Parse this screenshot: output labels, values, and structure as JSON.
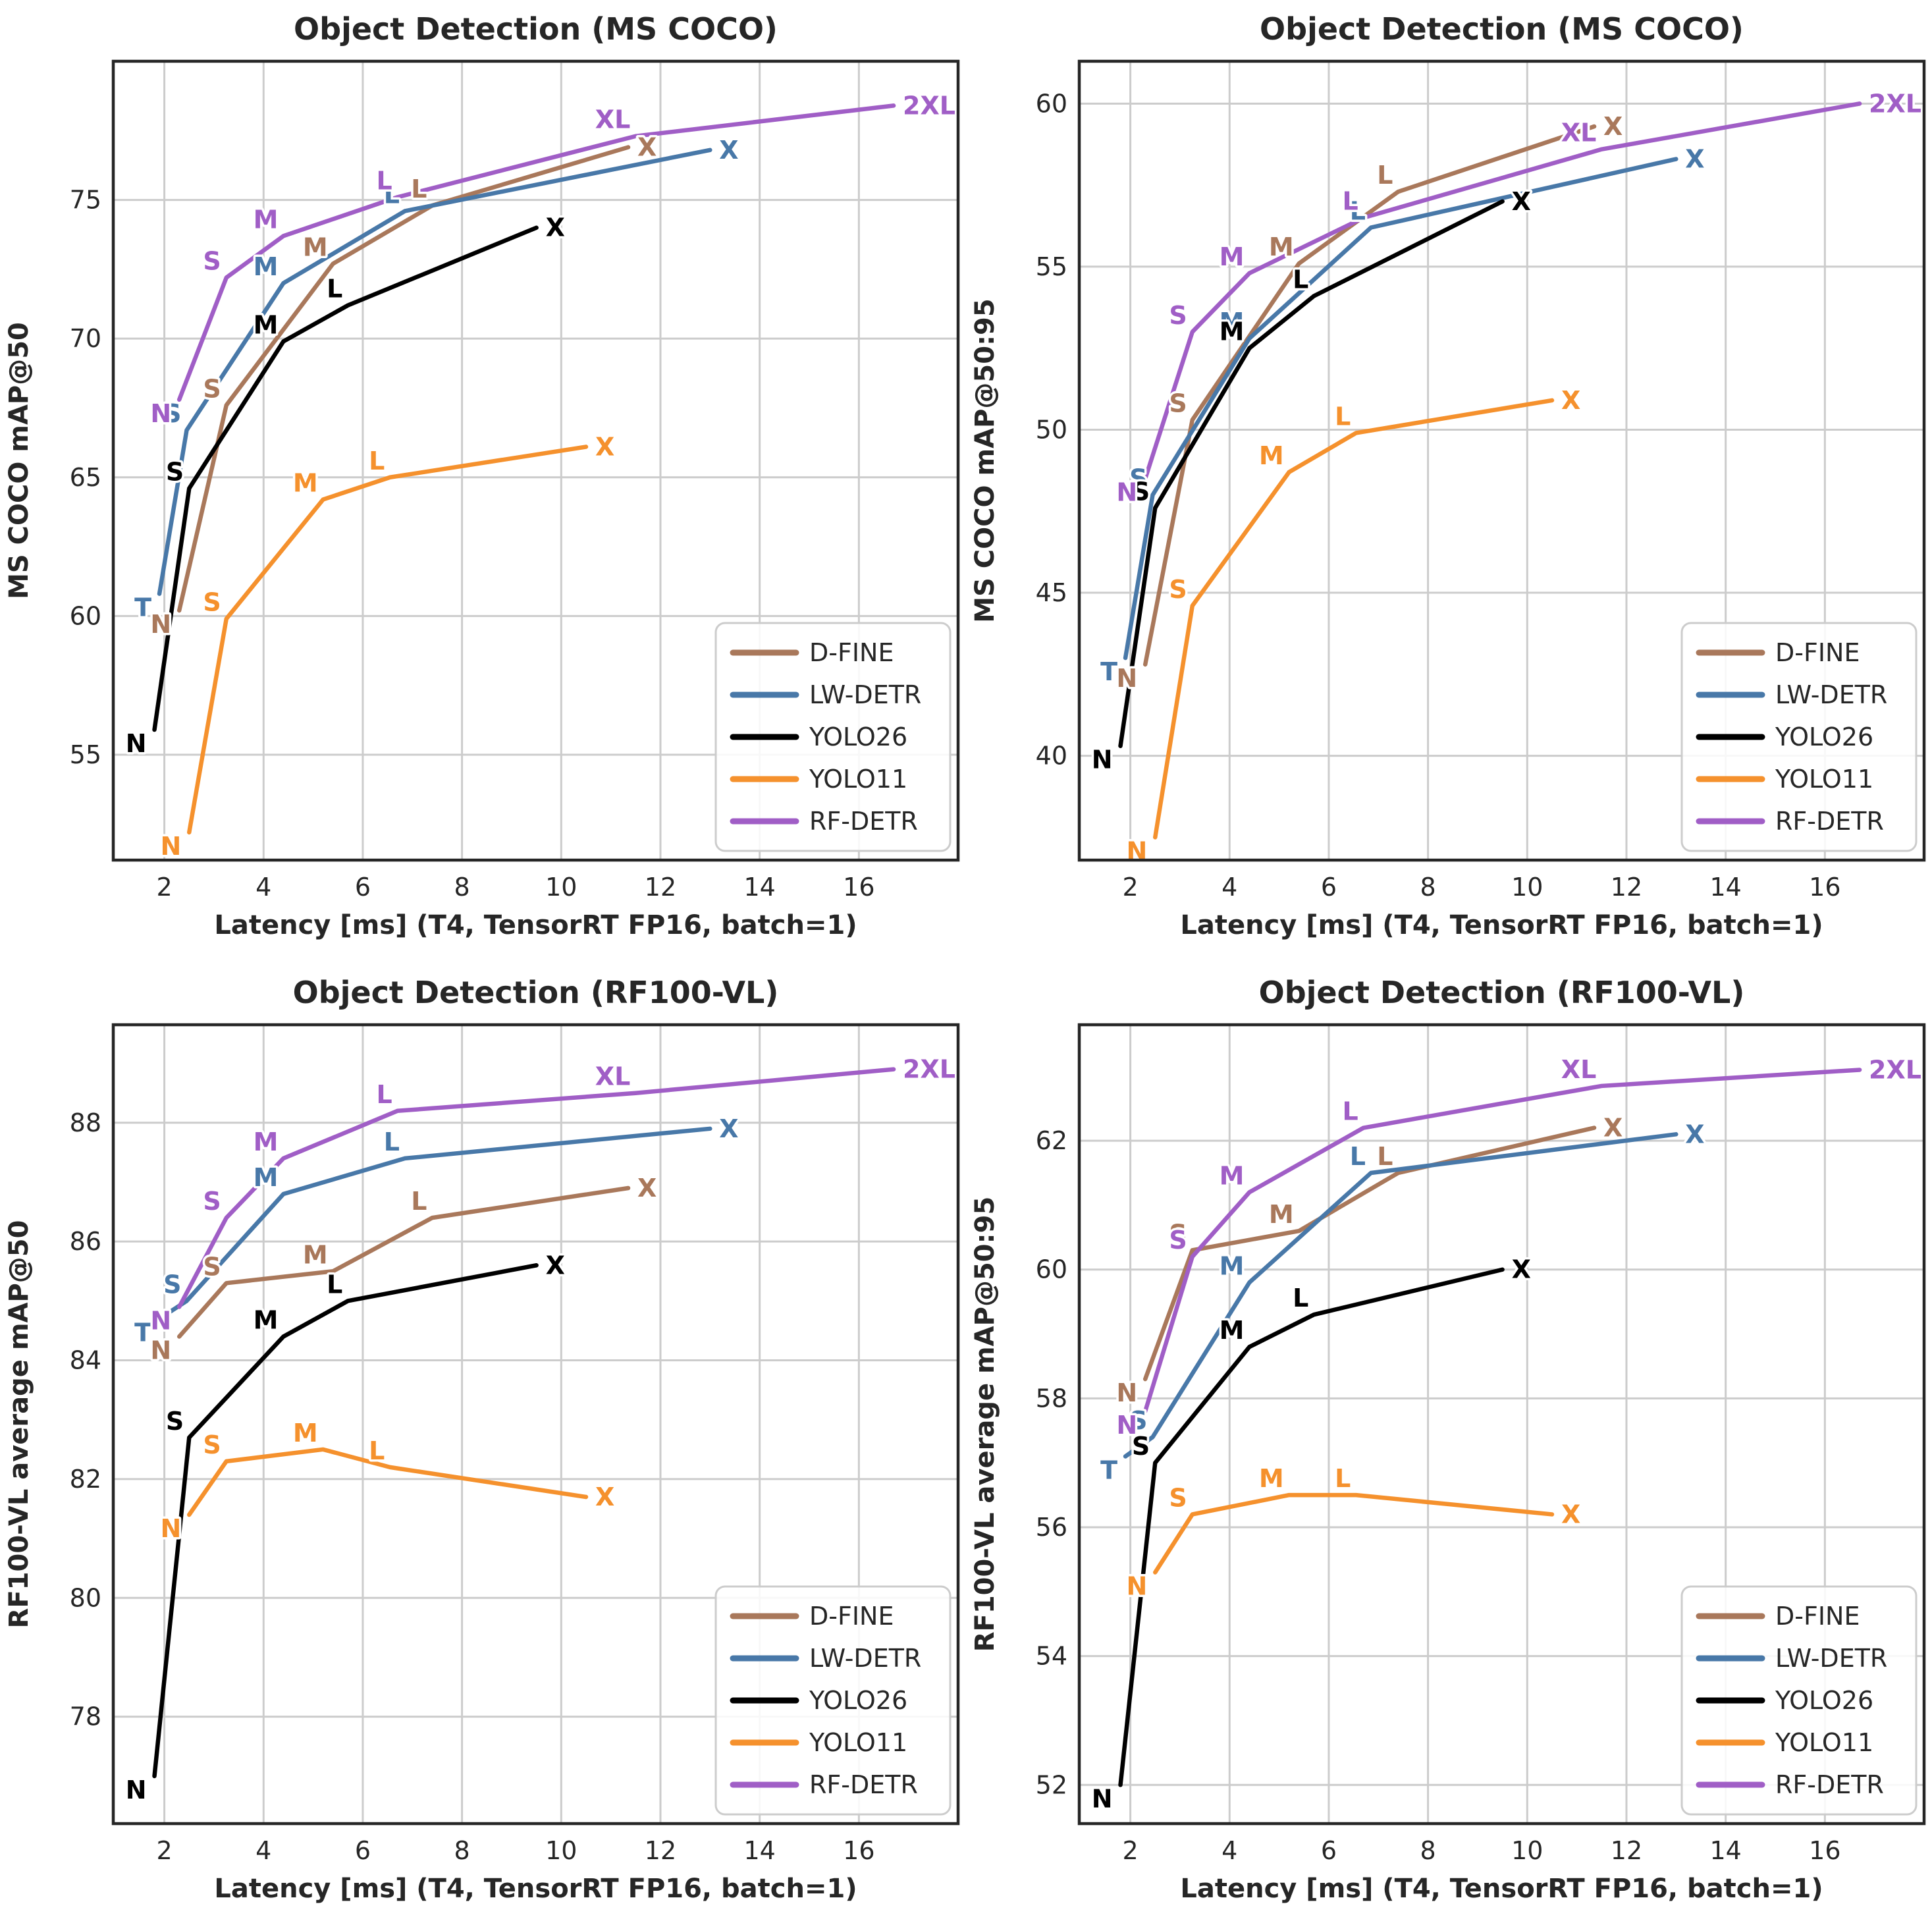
{
  "figure": {
    "background": "#ffffff",
    "text_color": "#262626",
    "grid_color": "#cccccc",
    "spine_color": "#262626"
  },
  "chart_data": [
    {
      "type": "line",
      "title": "Object Detection (MS COCO)",
      "xlabel": "Latency [ms] (T4, TensorRT FP16, batch=1)",
      "ylabel": "MS COCO mAP@50",
      "xlim": [
        0.97,
        18.0
      ],
      "ylim": [
        51.2,
        80.0
      ],
      "xticks": [
        2,
        4,
        6,
        8,
        10,
        12,
        14,
        16
      ],
      "yticks": [
        55,
        60,
        65,
        70,
        75
      ],
      "grid": true,
      "legend_position": "lower right",
      "series": [
        {
          "name": "D-FINE",
          "color": "#A9785B",
          "points": [
            {
              "label": "N",
              "x": 2.3,
              "y": 60.2
            },
            {
              "label": "S",
              "x": 3.25,
              "y": 67.6
            },
            {
              "label": "M",
              "x": 5.4,
              "y": 72.7
            },
            {
              "label": "L",
              "x": 7.4,
              "y": 74.8
            },
            {
              "label": "X",
              "x": 11.35,
              "y": 76.9
            }
          ]
        },
        {
          "name": "LW-DETR",
          "color": "#4878A8",
          "points": [
            {
              "label": "T",
              "x": 1.9,
              "y": 60.8
            },
            {
              "label": "S",
              "x": 2.45,
              "y": 66.7
            },
            {
              "label": "M",
              "x": 4.4,
              "y": 72.0
            },
            {
              "label": "L",
              "x": 6.85,
              "y": 74.6
            },
            {
              "label": "X",
              "x": 13.0,
              "y": 76.8
            }
          ]
        },
        {
          "name": "YOLO26",
          "color": "#000000",
          "points": [
            {
              "label": "N",
              "x": 1.8,
              "y": 55.9
            },
            {
              "label": "S",
              "x": 2.5,
              "y": 64.6
            },
            {
              "label": "M",
              "x": 4.4,
              "y": 69.9
            },
            {
              "label": "L",
              "x": 5.7,
              "y": 71.2
            },
            {
              "label": "X",
              "x": 9.5,
              "y": 74.0
            }
          ]
        },
        {
          "name": "YOLO11",
          "color": "#F5912D",
          "points": [
            {
              "label": "N",
              "x": 2.5,
              "y": 52.2
            },
            {
              "label": "S",
              "x": 3.25,
              "y": 59.9
            },
            {
              "label": "M",
              "x": 5.2,
              "y": 64.2
            },
            {
              "label": "L",
              "x": 6.55,
              "y": 65.0
            },
            {
              "label": "X",
              "x": 10.5,
              "y": 66.1
            }
          ]
        },
        {
          "name": "RF-DETR",
          "color": "#A05EC6",
          "points": [
            {
              "label": "N",
              "x": 2.3,
              "y": 67.8
            },
            {
              "label": "S",
              "x": 3.25,
              "y": 72.2
            },
            {
              "label": "M",
              "x": 4.4,
              "y": 73.7
            },
            {
              "label": "L",
              "x": 6.7,
              "y": 75.1
            },
            {
              "label": "XL",
              "x": 11.5,
              "y": 77.3
            },
            {
              "label": "2XL",
              "x": 16.7,
              "y": 78.4
            }
          ]
        }
      ]
    },
    {
      "type": "line",
      "title": "Object Detection (MS COCO)",
      "xlabel": "Latency [ms] (T4, TensorRT FP16, batch=1)",
      "ylabel": "MS COCO mAP@50:95",
      "xlim": [
        0.97,
        18.0
      ],
      "ylim": [
        36.8,
        61.3
      ],
      "xticks": [
        2,
        4,
        6,
        8,
        10,
        12,
        14,
        16
      ],
      "yticks": [
        40,
        45,
        50,
        55,
        60
      ],
      "grid": true,
      "legend_position": "lower right",
      "series": [
        {
          "name": "D-FINE",
          "color": "#A9785B",
          "points": [
            {
              "label": "N",
              "x": 2.3,
              "y": 42.8
            },
            {
              "label": "S",
              "x": 3.25,
              "y": 50.3
            },
            {
              "label": "M",
              "x": 5.4,
              "y": 55.1
            },
            {
              "label": "L",
              "x": 7.4,
              "y": 57.3
            },
            {
              "label": "X",
              "x": 11.35,
              "y": 59.3
            }
          ]
        },
        {
          "name": "LW-DETR",
          "color": "#4878A8",
          "points": [
            {
              "label": "T",
              "x": 1.9,
              "y": 43.0
            },
            {
              "label": "S",
              "x": 2.45,
              "y": 48.0
            },
            {
              "label": "M",
              "x": 4.4,
              "y": 52.8
            },
            {
              "label": "L",
              "x": 6.85,
              "y": 56.2
            },
            {
              "label": "X",
              "x": 13.0,
              "y": 58.3
            }
          ]
        },
        {
          "name": "YOLO26",
          "color": "#000000",
          "points": [
            {
              "label": "N",
              "x": 1.8,
              "y": 40.3
            },
            {
              "label": "S",
              "x": 2.5,
              "y": 47.6
            },
            {
              "label": "M",
              "x": 4.4,
              "y": 52.5
            },
            {
              "label": "L",
              "x": 5.7,
              "y": 54.1
            },
            {
              "label": "X",
              "x": 9.5,
              "y": 57.0
            }
          ]
        },
        {
          "name": "YOLO11",
          "color": "#F5912D",
          "points": [
            {
              "label": "N",
              "x": 2.5,
              "y": 37.5
            },
            {
              "label": "S",
              "x": 3.25,
              "y": 44.6
            },
            {
              "label": "M",
              "x": 5.2,
              "y": 48.7
            },
            {
              "label": "L",
              "x": 6.55,
              "y": 49.9
            },
            {
              "label": "X",
              "x": 10.5,
              "y": 50.9
            }
          ]
        },
        {
          "name": "RF-DETR",
          "color": "#A05EC6",
          "points": [
            {
              "label": "N",
              "x": 2.3,
              "y": 48.5
            },
            {
              "label": "S",
              "x": 3.25,
              "y": 53.0
            },
            {
              "label": "M",
              "x": 4.4,
              "y": 54.8
            },
            {
              "label": "L",
              "x": 6.7,
              "y": 56.5
            },
            {
              "label": "XL",
              "x": 11.5,
              "y": 58.6
            },
            {
              "label": "2XL",
              "x": 16.7,
              "y": 60.0
            }
          ]
        }
      ]
    },
    {
      "type": "line",
      "title": "Object Detection (RF100-VL)",
      "xlabel": "Latency [ms] (T4, TensorRT FP16, batch=1)",
      "ylabel": "RF100-VL average mAP@50",
      "xlim": [
        0.97,
        18.0
      ],
      "ylim": [
        76.2,
        89.65
      ],
      "xticks": [
        2,
        4,
        6,
        8,
        10,
        12,
        14,
        16
      ],
      "yticks": [
        78,
        80,
        82,
        84,
        86,
        88
      ],
      "grid": true,
      "legend_position": "lower right",
      "series": [
        {
          "name": "D-FINE",
          "color": "#A9785B",
          "points": [
            {
              "label": "N",
              "x": 2.3,
              "y": 84.4
            },
            {
              "label": "S",
              "x": 3.25,
              "y": 85.3
            },
            {
              "label": "M",
              "x": 5.4,
              "y": 85.5
            },
            {
              "label": "L",
              "x": 7.4,
              "y": 86.4
            },
            {
              "label": "X",
              "x": 11.35,
              "y": 86.9
            }
          ]
        },
        {
          "name": "LW-DETR",
          "color": "#4878A8",
          "points": [
            {
              "label": "T",
              "x": 1.9,
              "y": 84.7
            },
            {
              "label": "S",
              "x": 2.45,
              "y": 85.0
            },
            {
              "label": "M",
              "x": 4.4,
              "y": 86.8
            },
            {
              "label": "L",
              "x": 6.85,
              "y": 87.4
            },
            {
              "label": "X",
              "x": 13.0,
              "y": 87.9
            }
          ]
        },
        {
          "name": "YOLO26",
          "color": "#000000",
          "points": [
            {
              "label": "N",
              "x": 1.8,
              "y": 77.0
            },
            {
              "label": "S",
              "x": 2.5,
              "y": 82.7
            },
            {
              "label": "M",
              "x": 4.4,
              "y": 84.4
            },
            {
              "label": "L",
              "x": 5.7,
              "y": 85.0
            },
            {
              "label": "X",
              "x": 9.5,
              "y": 85.6
            }
          ]
        },
        {
          "name": "YOLO11",
          "color": "#F5912D",
          "points": [
            {
              "label": "N",
              "x": 2.5,
              "y": 81.4
            },
            {
              "label": "S",
              "x": 3.25,
              "y": 82.3
            },
            {
              "label": "M",
              "x": 5.2,
              "y": 82.5
            },
            {
              "label": "L",
              "x": 6.55,
              "y": 82.2
            },
            {
              "label": "X",
              "x": 10.5,
              "y": 81.7
            }
          ]
        },
        {
          "name": "RF-DETR",
          "color": "#A05EC6",
          "points": [
            {
              "label": "N",
              "x": 2.3,
              "y": 84.9
            },
            {
              "label": "S",
              "x": 3.25,
              "y": 86.4
            },
            {
              "label": "M",
              "x": 4.4,
              "y": 87.4
            },
            {
              "label": "L",
              "x": 6.7,
              "y": 88.2
            },
            {
              "label": "XL",
              "x": 11.5,
              "y": 88.5
            },
            {
              "label": "2XL",
              "x": 16.7,
              "y": 88.9
            }
          ]
        }
      ]
    },
    {
      "type": "line",
      "title": "Object Detection (RF100-VL)",
      "xlabel": "Latency [ms] (T4, TensorRT FP16, batch=1)",
      "ylabel": "RF100-VL average mAP@50:95",
      "xlim": [
        0.97,
        18.0
      ],
      "ylim": [
        51.4,
        63.8
      ],
      "xticks": [
        2,
        4,
        6,
        8,
        10,
        12,
        14,
        16
      ],
      "yticks": [
        52,
        54,
        56,
        58,
        60,
        62
      ],
      "grid": true,
      "legend_position": "lower right",
      "series": [
        {
          "name": "D-FINE",
          "color": "#A9785B",
          "points": [
            {
              "label": "N",
              "x": 2.3,
              "y": 58.3
            },
            {
              "label": "S",
              "x": 3.25,
              "y": 60.3
            },
            {
              "label": "M",
              "x": 5.4,
              "y": 60.6
            },
            {
              "label": "L",
              "x": 7.4,
              "y": 61.5
            },
            {
              "label": "X",
              "x": 11.35,
              "y": 62.2
            }
          ]
        },
        {
          "name": "LW-DETR",
          "color": "#4878A8",
          "points": [
            {
              "label": "T",
              "x": 1.9,
              "y": 57.1
            },
            {
              "label": "S",
              "x": 2.45,
              "y": 57.4
            },
            {
              "label": "M",
              "x": 4.4,
              "y": 59.8
            },
            {
              "label": "L",
              "x": 6.85,
              "y": 61.5
            },
            {
              "label": "X",
              "x": 13.0,
              "y": 62.1
            }
          ]
        },
        {
          "name": "YOLO26",
          "color": "#000000",
          "points": [
            {
              "label": "N",
              "x": 1.8,
              "y": 52.0
            },
            {
              "label": "S",
              "x": 2.5,
              "y": 57.0
            },
            {
              "label": "M",
              "x": 4.4,
              "y": 58.8
            },
            {
              "label": "L",
              "x": 5.7,
              "y": 59.3
            },
            {
              "label": "X",
              "x": 9.5,
              "y": 60.0
            }
          ]
        },
        {
          "name": "YOLO11",
          "color": "#F5912D",
          "points": [
            {
              "label": "N",
              "x": 2.5,
              "y": 55.3
            },
            {
              "label": "S",
              "x": 3.25,
              "y": 56.2
            },
            {
              "label": "M",
              "x": 5.2,
              "y": 56.5
            },
            {
              "label": "L",
              "x": 6.55,
              "y": 56.5
            },
            {
              "label": "X",
              "x": 10.5,
              "y": 56.2
            }
          ]
        },
        {
          "name": "RF-DETR",
          "color": "#A05EC6",
          "points": [
            {
              "label": "N",
              "x": 2.3,
              "y": 57.8
            },
            {
              "label": "S",
              "x": 3.25,
              "y": 60.2
            },
            {
              "label": "M",
              "x": 4.4,
              "y": 61.2
            },
            {
              "label": "L",
              "x": 6.7,
              "y": 62.2
            },
            {
              "label": "XL",
              "x": 11.5,
              "y": 62.85
            },
            {
              "label": "2XL",
              "x": 16.7,
              "y": 63.1
            }
          ]
        }
      ]
    }
  ]
}
